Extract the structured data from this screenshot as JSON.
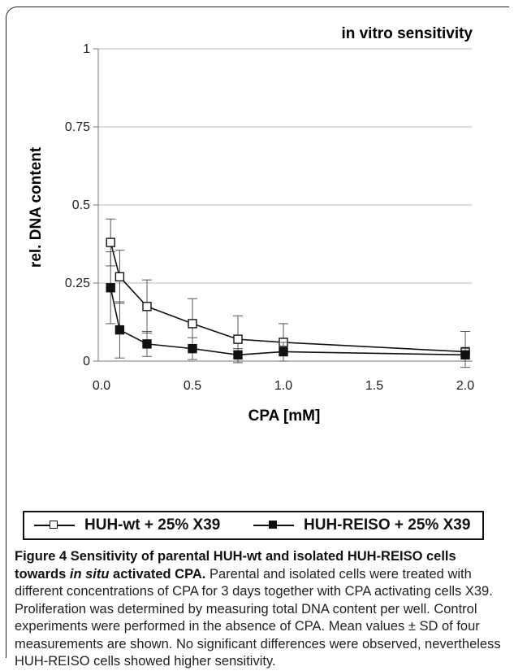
{
  "chart_data": {
    "type": "line",
    "title": "in vitro sensitivity",
    "xlabel": "CPA [mM]",
    "ylabel": "rel. DNA content",
    "xlim": [
      0,
      2.0
    ],
    "ylim": [
      0,
      1
    ],
    "x_ticks": [
      0,
      0.5,
      1.0,
      1.5,
      2.0
    ],
    "x_tick_labels": [
      "0.0",
      "0.5",
      "1.0",
      "1.5",
      "2.0"
    ],
    "y_ticks": [
      0,
      0.25,
      0.5,
      0.75,
      1
    ],
    "y_tick_labels": [
      "0",
      "0.25",
      "0.5",
      "0.75",
      "1"
    ],
    "grid": "horizontal",
    "legend_position": "bottom",
    "series": [
      {
        "name": "HUH-wt + 25% X39",
        "marker": "open-square",
        "color": "#111111",
        "x": [
          0.05,
          0.1,
          0.25,
          0.5,
          0.75,
          1.0,
          2.0
        ],
        "y": [
          0.38,
          0.27,
          0.175,
          0.12,
          0.07,
          0.06,
          0.03
        ],
        "error": [
          0.075,
          0.085,
          0.085,
          0.08,
          0.075,
          0.06,
          0.065
        ]
      },
      {
        "name": "HUH-REISO + 25% X39",
        "marker": "filled-square",
        "color": "#111111",
        "x": [
          0.05,
          0.1,
          0.25,
          0.5,
          0.75,
          1.0,
          2.0
        ],
        "y": [
          0.235,
          0.1,
          0.055,
          0.04,
          0.02,
          0.03,
          0.02
        ],
        "error": [
          0.115,
          0.09,
          0.04,
          0.035,
          0.02,
          0.03,
          0.02
        ]
      }
    ]
  },
  "caption": {
    "title": "Figure 4 Sensitivity of parental HUH-wt and isolated HUH-REISO cells towards ",
    "title_italic": "in situ",
    "title_end": " activated CPA.",
    "body": " Parental and isolated cells were treated with different concentrations of CPA for 3 days together with CPA activating cells X39. Proliferation was determined by measuring total DNA content per well. Control experiments were performed in the absence of CPA. Mean values ± SD of four measurements are shown. No significant differences were observed, nevertheless HUH-REISO cells showed higher sensitivity."
  }
}
